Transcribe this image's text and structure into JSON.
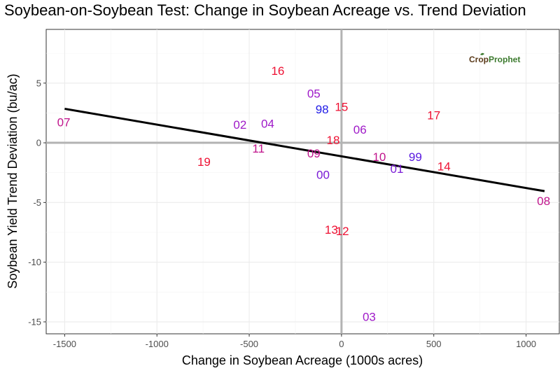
{
  "chart_data": {
    "type": "scatter",
    "title": "Soybean-on-Soybean Test: Change in Soybean Acreage vs. Trend Deviation",
    "xlabel": "Change in Soybean Acreage (1000s acres)",
    "ylabel": "Soybean Yield Trend Deviation (bu/ac)",
    "xlim": [
      -1600,
      1180
    ],
    "ylim": [
      -16,
      9.5
    ],
    "x_ticks": [
      -1500,
      -1000,
      -500,
      0,
      500,
      1000
    ],
    "y_ticks": [
      -15,
      -10,
      -5,
      0,
      5
    ],
    "x_tick_labels": [
      "-1500",
      "-1000",
      "-500",
      "0",
      "500",
      "1000"
    ],
    "y_tick_labels": [
      "-15",
      "-10",
      "-5",
      "0",
      "5"
    ],
    "grid": true,
    "points": [
      {
        "label": "07",
        "x": -1505,
        "y": 1.7,
        "color": "#c0148c"
      },
      {
        "label": "19",
        "x": -745,
        "y": -1.6,
        "color": "#ee1133"
      },
      {
        "label": "02",
        "x": -550,
        "y": 1.5,
        "color": "#9f1ac8"
      },
      {
        "label": "04",
        "x": -400,
        "y": 1.6,
        "color": "#9f1ac8"
      },
      {
        "label": "11",
        "x": -450,
        "y": -0.5,
        "color": "#c0148c"
      },
      {
        "label": "16",
        "x": -345,
        "y": 6.0,
        "color": "#ee1133"
      },
      {
        "label": "05",
        "x": -150,
        "y": 4.1,
        "color": "#9f1ac8"
      },
      {
        "label": "98",
        "x": -105,
        "y": 2.8,
        "color": "#1f1ae6"
      },
      {
        "label": "15",
        "x": 0,
        "y": 3.0,
        "color": "#ee1133"
      },
      {
        "label": "18",
        "x": -45,
        "y": 0.2,
        "color": "#ee1133"
      },
      {
        "label": "09",
        "x": -150,
        "y": -0.9,
        "color": "#c0148c"
      },
      {
        "label": "00",
        "x": -100,
        "y": -2.7,
        "color": "#7a1ad6"
      },
      {
        "label": "06",
        "x": 100,
        "y": 1.1,
        "color": "#9f1ac8"
      },
      {
        "label": "10",
        "x": 205,
        "y": -1.2,
        "color": "#c0148c"
      },
      {
        "label": "99",
        "x": 400,
        "y": -1.2,
        "color": "#5a1ae0"
      },
      {
        "label": "01",
        "x": 300,
        "y": -2.2,
        "color": "#7a1ad6"
      },
      {
        "label": "14",
        "x": 555,
        "y": -2.0,
        "color": "#ee1133"
      },
      {
        "label": "17",
        "x": 500,
        "y": 2.3,
        "color": "#ee1133"
      },
      {
        "label": "08",
        "x": 1095,
        "y": -4.9,
        "color": "#c0148c"
      },
      {
        "label": "13",
        "x": -55,
        "y": -7.3,
        "color": "#ee1133"
      },
      {
        "label": "12",
        "x": 5,
        "y": -7.4,
        "color": "#ee1133"
      },
      {
        "label": "03",
        "x": 150,
        "y": -14.6,
        "color": "#9f1ac8"
      }
    ],
    "trend_line": {
      "x": [
        -1500,
        1100
      ],
      "y": [
        2.85,
        -4.05
      ],
      "color": "#000000"
    },
    "reference_lines": {
      "x": 0,
      "y": 0
    }
  },
  "logo": {
    "part1": "Crop",
    "part2": "Prophet"
  }
}
